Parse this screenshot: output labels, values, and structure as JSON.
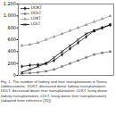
{
  "chart_data": {
    "type": "line",
    "categories": [
      null,
      null,
      null,
      null,
      null,
      null,
      null,
      null,
      null,
      null,
      null,
      null
    ],
    "series": [
      {
        "name": "DDKT",
        "color": "#222222",
        "marker": "diamond",
        "values": [
          150,
          170,
          180,
          200,
          250,
          350,
          450,
          550,
          650,
          750,
          800,
          850
        ]
      },
      {
        "name": "DDLT",
        "color": "#777777",
        "marker": "square",
        "values": [
          30,
          40,
          50,
          70,
          100,
          150,
          200,
          250,
          300,
          350,
          380,
          400
        ]
      },
      {
        "name": "LDKT",
        "color": "#999999",
        "marker": "triangle",
        "values": [
          500,
          520,
          550,
          600,
          650,
          700,
          750,
          800,
          850,
          900,
          950,
          1000
        ]
      },
      {
        "name": "LDLT",
        "color": "#000000",
        "marker": "times",
        "values": [
          50,
          100,
          150,
          200,
          300,
          400,
          500,
          600,
          700,
          750,
          800,
          850
        ]
      }
    ],
    "ylim": [
      0,
      1200
    ],
    "yticks": [
      0,
      200,
      400,
      600,
      800,
      1000,
      1200
    ],
    "tick_labels": "y",
    "legend": "top-left",
    "caption": [
      "Fig. 1. The number of kidney and liver transplantation in Korea",
      "(abbreviations: DDKT, deceased donor kidney transplantation;",
      "DDLT, deceased donor liver transplantation; LDKT, living donor",
      "kidney transplantation; LDLT, living donor liver transplantation)",
      "(adapted from reference [25])."
    ]
  }
}
